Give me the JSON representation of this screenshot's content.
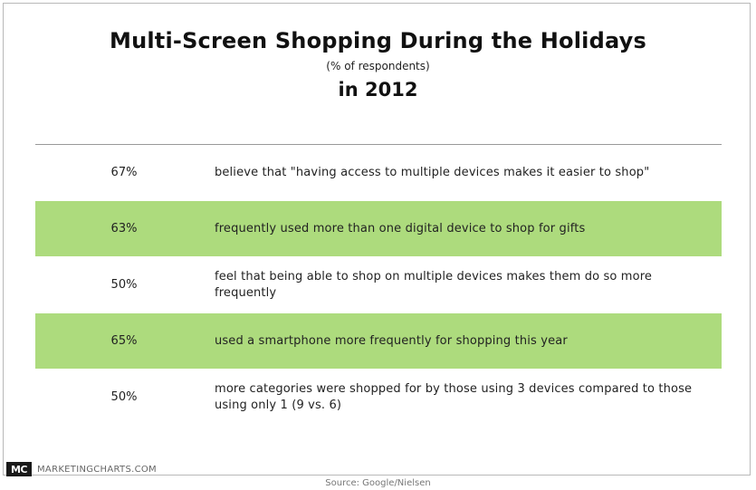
{
  "chart_data": {
    "type": "table",
    "title": "Multi-Screen Shopping During the Holidays",
    "subtitle": "(% of respondents)",
    "title_line2": "in 2012",
    "rows": [
      {
        "value": "67%",
        "label": "believe that \"having access to multiple devices makes it easier to shop\"",
        "highlight": false
      },
      {
        "value": "63%",
        "label": "frequently used more than one digital device to shop for gifts",
        "highlight": true
      },
      {
        "value": "50%",
        "label": "feel that being able to shop on multiple devices makes them do so more frequently",
        "highlight": false
      },
      {
        "value": "65%",
        "label": "used a smartphone more frequently for shopping this year",
        "highlight": true
      },
      {
        "value": "50%",
        "label": "more categories were shopped for by those using 3 devices compared to those using only 1 (9 vs. 6)",
        "highlight": false
      }
    ],
    "highlight_color": "#addb7d"
  },
  "branding": {
    "logo_mark": "MC",
    "logo_text": "MARKETINGCHARTS.COM"
  },
  "source": "Source: Google/Nielsen"
}
